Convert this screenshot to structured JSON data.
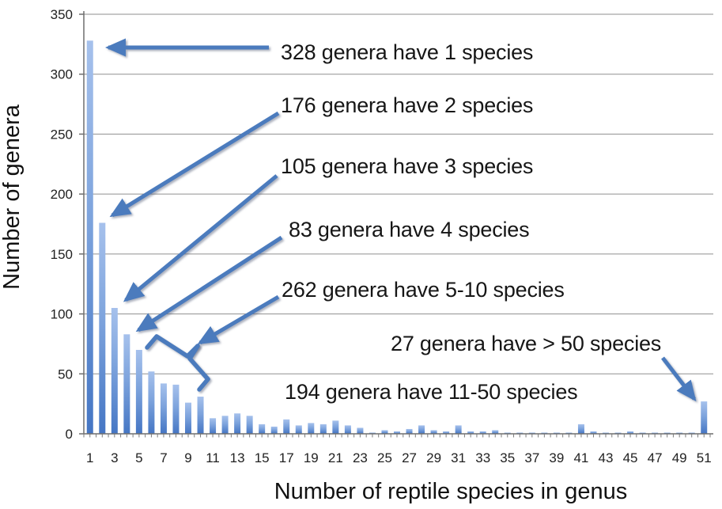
{
  "chart_data": {
    "type": "bar",
    "title": "",
    "xlabel": "Number of reptile species in genus",
    "ylabel": "Number of genera",
    "x_range": [
      1,
      51
    ],
    "values": [
      328,
      176,
      105,
      83,
      70,
      52,
      42,
      41,
      26,
      31,
      13,
      15,
      17,
      15,
      8,
      6,
      12,
      7,
      9,
      8,
      11,
      7,
      5,
      1,
      3,
      2,
      4,
      7,
      3,
      2,
      7,
      2,
      2,
      3,
      1,
      1,
      1,
      1,
      1,
      1,
      8,
      2,
      1,
      1,
      2,
      1,
      1,
      1,
      1,
      1,
      27
    ],
    "ylim": [
      0,
      350
    ],
    "yticks": [
      0,
      50,
      100,
      150,
      200,
      250,
      300,
      350
    ],
    "xtick_labels": [
      1,
      3,
      5,
      7,
      9,
      11,
      13,
      15,
      17,
      19,
      21,
      23,
      25,
      27,
      29,
      31,
      33,
      35,
      37,
      39,
      41,
      43,
      45,
      47,
      49,
      51
    ],
    "grid": "horizontal gridlines at every 50",
    "legend": "none",
    "colors": {
      "bar_gradient_top": "#a6c1ec",
      "bar_gradient_bottom": "#4576c4",
      "arrow": "#4b7bbd",
      "gridline": "#8f8f8f",
      "axis": "#6e6e6e",
      "text": "#161616"
    },
    "annotations": [
      {
        "text": "328 genera have 1 species",
        "target": "bar 1"
      },
      {
        "text": "176 genera have 2 species",
        "target": "bar 2"
      },
      {
        "text": "105 genera have 3 species",
        "target": "bar 3"
      },
      {
        "text": "83 genera have 4 species",
        "target": "bar 4"
      },
      {
        "text": "262 genera have 5-10 species",
        "target": "bars 5-10 (brace)"
      },
      {
        "text": "27 genera have > 50 species",
        "target": "bar 51"
      },
      {
        "text": "194 genera have 11-50 species",
        "target": "bars 11-50"
      }
    ]
  }
}
